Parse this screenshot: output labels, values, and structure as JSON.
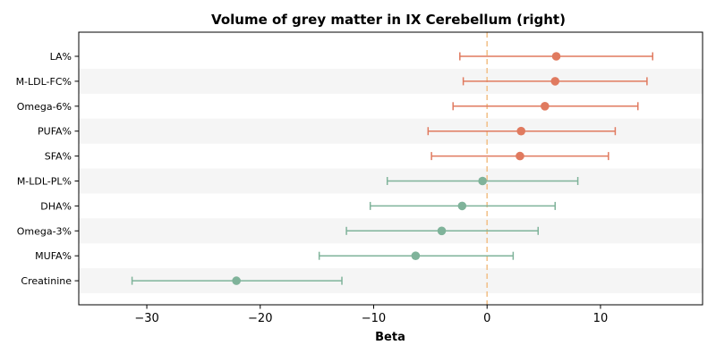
{
  "chart_data": {
    "type": "forest",
    "title": "Volume of grey matter in IX Cerebellum (right)",
    "xlabel": "Beta",
    "xlim": [
      -36,
      19
    ],
    "xticks": [
      -30,
      -20,
      -10,
      0,
      10
    ],
    "xtick_labels": [
      "−30",
      "−20",
      "−10",
      "0",
      "10"
    ],
    "reference_line": 0,
    "grid": false,
    "rows": [
      {
        "label": "LA%",
        "beta": 6.1,
        "ci_low": -2.4,
        "ci_high": 14.6,
        "group": "positive"
      },
      {
        "label": "M-LDL-FC%",
        "beta": 6.0,
        "ci_low": -2.1,
        "ci_high": 14.1,
        "group": "positive"
      },
      {
        "label": "Omega-6%",
        "beta": 5.1,
        "ci_low": -3.0,
        "ci_high": 13.3,
        "group": "positive"
      },
      {
        "label": "PUFA%",
        "beta": 3.0,
        "ci_low": -5.2,
        "ci_high": 11.3,
        "group": "positive"
      },
      {
        "label": "SFA%",
        "beta": 2.9,
        "ci_low": -4.9,
        "ci_high": 10.7,
        "group": "positive"
      },
      {
        "label": "M-LDL-PL%",
        "beta": -0.4,
        "ci_low": -8.8,
        "ci_high": 8.0,
        "group": "negative"
      },
      {
        "label": "DHA%",
        "beta": -2.2,
        "ci_low": -10.3,
        "ci_high": 6.0,
        "group": "negative"
      },
      {
        "label": "Omega-3%",
        "beta": -4.0,
        "ci_low": -12.4,
        "ci_high": 4.5,
        "group": "negative"
      },
      {
        "label": "MUFA%",
        "beta": -6.3,
        "ci_low": -14.8,
        "ci_high": 2.3,
        "group": "negative"
      },
      {
        "label": "Creatinine",
        "beta": -22.1,
        "ci_low": -31.3,
        "ci_high": -12.8,
        "group": "negative"
      }
    ],
    "colors": {
      "positive": "#e07a5f",
      "negative": "#7fb39a",
      "reference_line": "#f2c28c",
      "band": "#f5f5f5"
    }
  }
}
